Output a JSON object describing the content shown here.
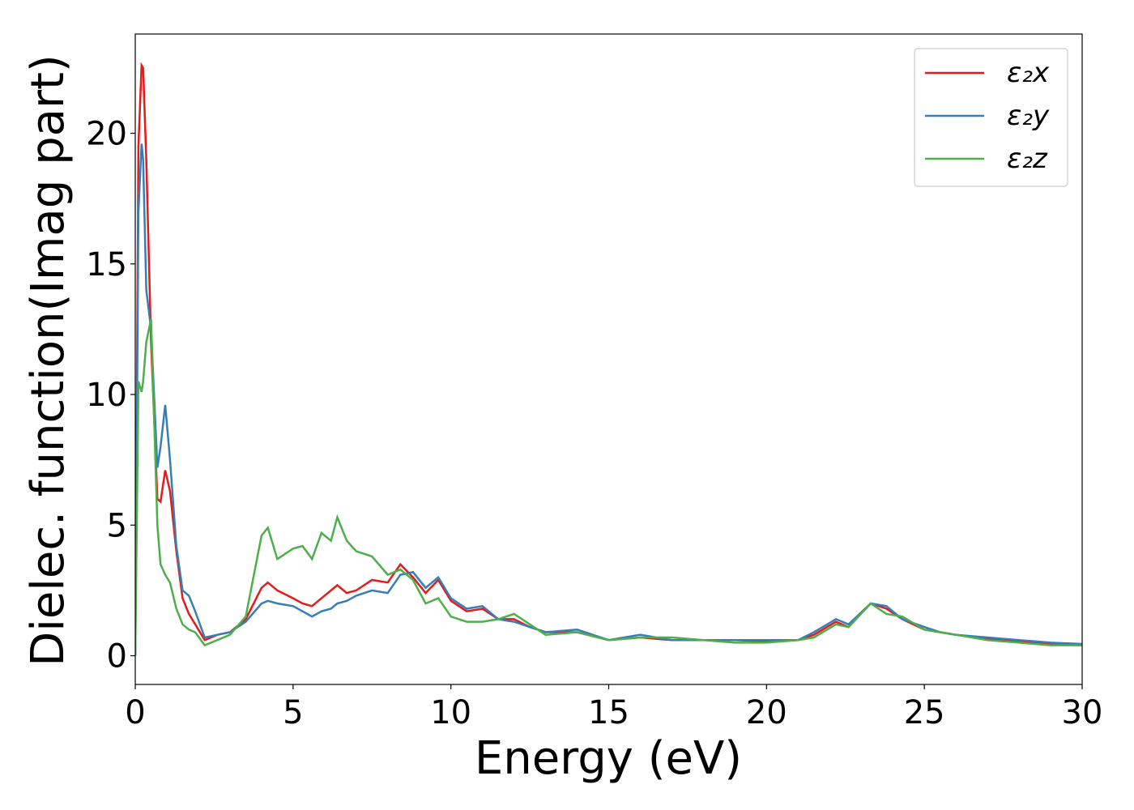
{
  "chart_data": {
    "type": "line",
    "xlabel": "Energy (eV)",
    "ylabel": "Dielec. function(Imag part)",
    "x": [
      0,
      0.1,
      0.2,
      0.25,
      0.35,
      0.5,
      0.7,
      0.8,
      0.95,
      1.1,
      1.3,
      1.5,
      1.7,
      1.9,
      2.2,
      2.6,
      3.0,
      3.5,
      4.0,
      4.2,
      4.5,
      5.0,
      5.3,
      5.6,
      5.9,
      6.2,
      6.4,
      6.7,
      7.0,
      7.5,
      8.0,
      8.4,
      8.8,
      9.2,
      9.6,
      10,
      10.5,
      11,
      11.5,
      12,
      12.5,
      13,
      14,
      15,
      16,
      17,
      18,
      19,
      20,
      21,
      21.5,
      22.2,
      22.6,
      23.3,
      23.8,
      24.3,
      25,
      25.5,
      26,
      27,
      28,
      29,
      30
    ],
    "series": [
      {
        "name": "ε₂x",
        "color": "#e41a1c",
        "values": [
          0,
          19.5,
          22.6,
          22.5,
          19,
          12,
          6,
          5.9,
          7.1,
          6.3,
          4,
          2.2,
          1.6,
          1.2,
          0.6,
          0.8,
          0.9,
          1.4,
          2.6,
          2.8,
          2.5,
          2.2,
          2.0,
          1.9,
          2.2,
          2.5,
          2.7,
          2.4,
          2.5,
          2.9,
          2.8,
          3.5,
          3.0,
          2.4,
          2.9,
          2.1,
          1.7,
          1.8,
          1.4,
          1.4,
          1.1,
          0.9,
          0.9,
          0.6,
          0.7,
          0.6,
          0.6,
          0.6,
          0.55,
          0.6,
          0.8,
          1.3,
          1.1,
          2.0,
          1.8,
          1.4,
          1.0,
          0.9,
          0.8,
          0.65,
          0.55,
          0.45,
          0.4
        ]
      },
      {
        "name": "ε₂y",
        "color": "#377eb8",
        "values": [
          0,
          17,
          19.6,
          19,
          14,
          12.5,
          7.2,
          8,
          9.6,
          7.5,
          4.2,
          2.5,
          2.3,
          1.7,
          0.7,
          0.8,
          0.9,
          1.3,
          2.0,
          2.1,
          2.0,
          1.9,
          1.7,
          1.5,
          1.7,
          1.8,
          2.0,
          2.1,
          2.3,
          2.5,
          2.4,
          3.1,
          3.2,
          2.6,
          3.0,
          2.2,
          1.8,
          1.9,
          1.4,
          1.3,
          1.1,
          0.9,
          1.0,
          0.6,
          0.8,
          0.6,
          0.6,
          0.6,
          0.6,
          0.6,
          0.9,
          1.4,
          1.2,
          2.0,
          1.9,
          1.4,
          1.1,
          0.9,
          0.8,
          0.7,
          0.6,
          0.5,
          0.45
        ]
      },
      {
        "name": "ε₂z",
        "color": "#4daf4a",
        "values": [
          0,
          10.5,
          10.1,
          10.5,
          12,
          12.9,
          5,
          3.5,
          3.1,
          2.8,
          1.8,
          1.2,
          1.0,
          0.9,
          0.4,
          0.6,
          0.8,
          1.5,
          4.6,
          4.9,
          3.7,
          4.1,
          4.2,
          3.7,
          4.7,
          4.4,
          5.3,
          4.4,
          4.0,
          3.8,
          3.1,
          3.3,
          2.9,
          2.0,
          2.2,
          1.5,
          1.3,
          1.3,
          1.4,
          1.6,
          1.2,
          0.8,
          0.9,
          0.6,
          0.7,
          0.7,
          0.6,
          0.5,
          0.5,
          0.6,
          0.7,
          1.2,
          1.1,
          2.0,
          1.6,
          1.5,
          1.0,
          0.9,
          0.8,
          0.6,
          0.5,
          0.4,
          0.4
        ]
      }
    ],
    "xlim": [
      0,
      30
    ],
    "ylim": [
      -1.1,
      23.8
    ],
    "xticks": [
      0,
      5,
      10,
      15,
      20,
      25,
      30
    ],
    "yticks": [
      0,
      5,
      10,
      15,
      20
    ],
    "legend": "upper right"
  }
}
